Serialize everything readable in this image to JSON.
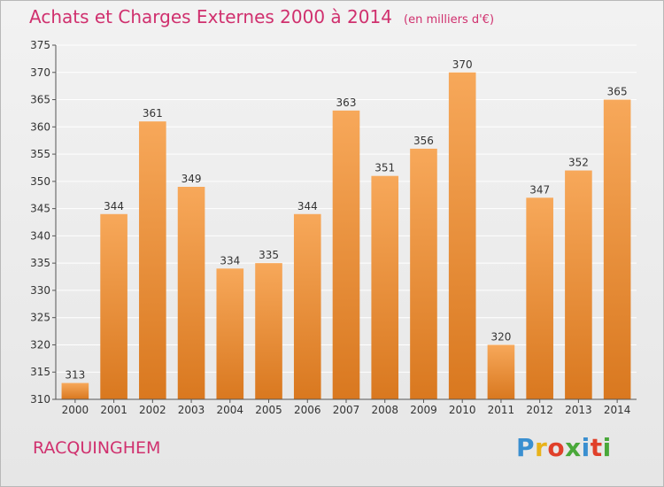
{
  "header": {
    "title": "Achats et Charges Externes 2000 à 2014",
    "unit": "(en milliers d'€)"
  },
  "footer": {
    "town": "RACQUINGHEM",
    "logo_letters": [
      "P",
      "r",
      "o",
      "x",
      "i",
      "t",
      "i"
    ],
    "logo_colors": [
      "#3a8fd0",
      "#e8b21a",
      "#e0402a",
      "#4aa83a",
      "#3a8fd0",
      "#e0402a",
      "#4aa83a"
    ]
  },
  "colors": {
    "bar_top": "#f7a85a",
    "bar_bottom": "#d9781f",
    "grid": "#ffffff",
    "axis": "#555555"
  },
  "chart_data": {
    "type": "bar",
    "categories": [
      "2000",
      "2001",
      "2002",
      "2003",
      "2004",
      "2005",
      "2006",
      "2007",
      "2008",
      "2009",
      "2010",
      "2011",
      "2012",
      "2013",
      "2014"
    ],
    "values": [
      313,
      344,
      361,
      349,
      334,
      335,
      344,
      363,
      351,
      356,
      370,
      320,
      347,
      352,
      365
    ],
    "title": "Achats et Charges Externes 2000 à 2014",
    "xlabel": "",
    "ylabel": "",
    "ylim": [
      310,
      375
    ],
    "yticks": [
      310,
      315,
      320,
      325,
      330,
      335,
      340,
      345,
      350,
      355,
      360,
      365,
      370,
      375
    ],
    "grid": true,
    "data_labels": true
  }
}
